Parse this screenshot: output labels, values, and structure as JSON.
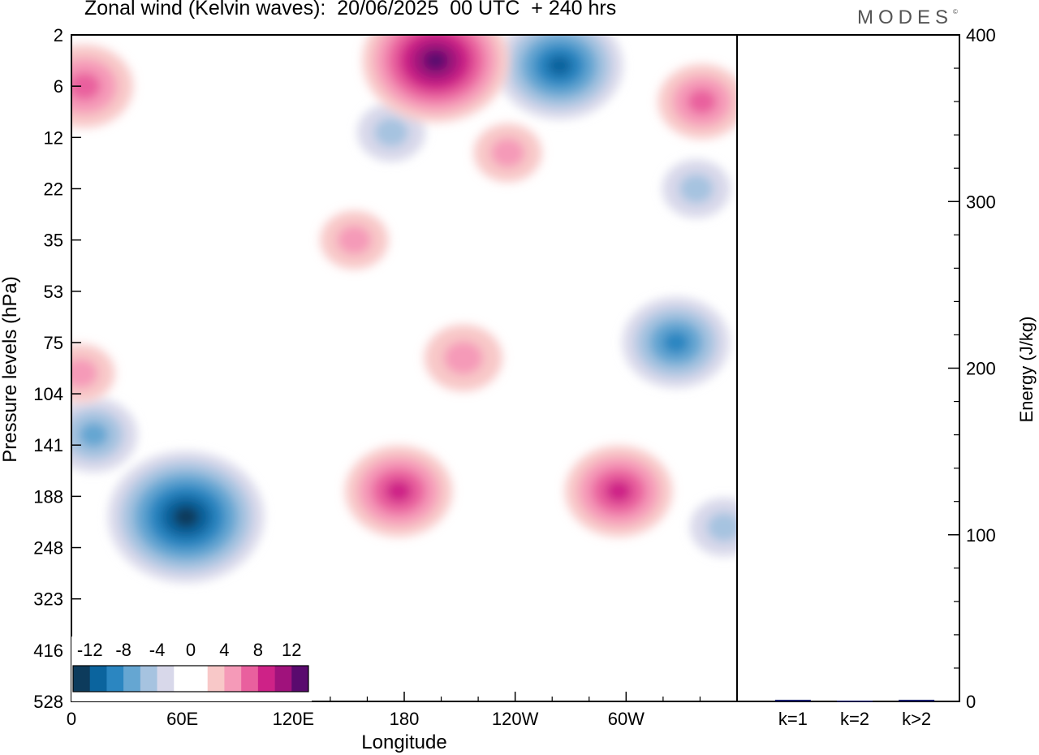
{
  "title": "Zonal wind (Kelvin waves):  20/06/2025  00 UTC  + 240 hrs",
  "logo": "MODES",
  "logo_mark": "©",
  "chart_data": [
    {
      "type": "heatmap",
      "xlabel": "Longitude",
      "ylabel": "Pressure levels (hPa)",
      "x_ticks": [
        "0",
        "60E",
        "120E",
        "180",
        "120W",
        "60W"
      ],
      "x_tick_degrees": [
        0,
        60,
        120,
        180,
        240,
        300
      ],
      "xlim": [
        0,
        360
      ],
      "y_ticks": [
        "2",
        "6",
        "12",
        "22",
        "35",
        "53",
        "75",
        "104",
        "141",
        "188",
        "248",
        "323",
        "416",
        "528"
      ],
      "y_axis": "level index, top to bottom",
      "colorbar": {
        "labels": [
          "-12",
          "-8",
          "-4",
          "0",
          "4",
          "8",
          "12"
        ],
        "colors": [
          "#0d3b5c",
          "#0b649e",
          "#2b86c1",
          "#65a6d2",
          "#a6c3e0",
          "#d8d8ea",
          "#ffffff",
          "#ffffff",
          "#f8c8c8",
          "#f59ab8",
          "#e9609e",
          "#ce2287",
          "#a0127c",
          "#5a0a6e"
        ]
      },
      "features": [
        {
          "sign": "negative",
          "peak": -13,
          "lon": 62,
          "level": 9.4
        },
        {
          "sign": "negative",
          "peak": -10,
          "lon": 264,
          "level": 0.6
        },
        {
          "sign": "negative",
          "peak": -8,
          "lon": 327,
          "level": 6.0
        },
        {
          "sign": "negative",
          "peak": -6,
          "lon": 12,
          "level": 7.8
        },
        {
          "sign": "negative",
          "peak": -4,
          "lon": 353,
          "level": 9.6
        },
        {
          "sign": "negative",
          "peak": -4,
          "lon": 338,
          "level": 3.0
        },
        {
          "sign": "negative",
          "peak": -4,
          "lon": 173,
          "level": 1.9
        },
        {
          "sign": "positive",
          "peak": 12,
          "lon": 197,
          "level": 0.5
        },
        {
          "sign": "positive",
          "peak": 8,
          "lon": 177,
          "level": 8.9
        },
        {
          "sign": "positive",
          "peak": 8,
          "lon": 296,
          "level": 8.9
        },
        {
          "sign": "positive",
          "peak": 7,
          "lon": 7,
          "level": 1.0
        },
        {
          "sign": "positive",
          "peak": 6,
          "lon": 341,
          "level": 1.3
        },
        {
          "sign": "positive",
          "peak": 5,
          "lon": 212,
          "level": 6.3
        },
        {
          "sign": "positive",
          "peak": 4,
          "lon": 236,
          "level": 2.3
        },
        {
          "sign": "positive",
          "peak": 4,
          "lon": 153,
          "level": 4.0
        },
        {
          "sign": "positive",
          "peak": 4,
          "lon": 5,
          "level": 6.6
        }
      ]
    },
    {
      "type": "bar",
      "categories": [
        "k=1",
        "k=2",
        "k>2"
      ],
      "values": [
        1,
        0.5,
        1
      ],
      "ylabel": "Energy (J/kg)",
      "ylim": [
        0,
        400
      ],
      "y_ticks": [
        0,
        100,
        200,
        300,
        400
      ],
      "bar_color": "#1a1f6e"
    }
  ]
}
